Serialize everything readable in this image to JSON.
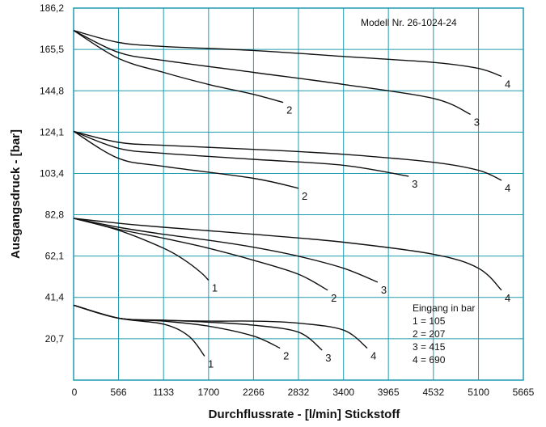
{
  "chart_data": {
    "type": "line",
    "title": "",
    "model_label": "Modell Nr. 26-1024-24",
    "xlabel": "Durchflussrate - [l/min] Stickstoff",
    "ylabel": "Ausgangsdruck - [bar]",
    "xlim": [
      0,
      5665
    ],
    "ylim": [
      0,
      186.2
    ],
    "x_ticks": [
      "0",
      "566",
      "1133",
      "1700",
      "2266",
      "2832",
      "3400",
      "3965",
      "4532",
      "5100",
      "5665"
    ],
    "y_ticks": [
      "186,2",
      "165,5",
      "144,8",
      "124,1",
      "103,4",
      "82,8",
      "62,1",
      "41,4",
      "20,7"
    ],
    "grid": true,
    "grid_color": "#1f9bb0",
    "line_color": "#111111",
    "legend": {
      "title": "Eingang in bar",
      "items": [
        "1 = 105",
        "2 = 207",
        "3 = 415",
        "4 = 690"
      ]
    },
    "series": [
      {
        "name": "4",
        "group": "Gruppe 175",
        "label": "4",
        "x": [
          0,
          566,
          1133,
          2266,
          3400,
          4532,
          5100,
          5390
        ],
        "y": [
          175,
          169,
          167,
          165,
          162,
          159,
          156,
          152
        ]
      },
      {
        "name": "3",
        "group": "Gruppe 175",
        "label": "3",
        "x": [
          0,
          566,
          1133,
          2266,
          3400,
          4532,
          5000
        ],
        "y": [
          175,
          164,
          160,
          154,
          148,
          141,
          133
        ]
      },
      {
        "name": "2",
        "group": "Gruppe 175",
        "label": "2",
        "x": [
          0,
          566,
          1133,
          1700,
          2266,
          2640
        ],
        "y": [
          175,
          161,
          154,
          148,
          143,
          139
        ]
      },
      {
        "name": "4",
        "group": "Gruppe 124",
        "label": "4",
        "x": [
          0,
          566,
          1133,
          2266,
          3400,
          4532,
          5100,
          5390
        ],
        "y": [
          124.5,
          119,
          117.5,
          115.5,
          113,
          109,
          105,
          100
        ]
      },
      {
        "name": "3",
        "group": "Gruppe 124",
        "label": "3",
        "x": [
          0,
          566,
          1133,
          2266,
          3400,
          4220
        ],
        "y": [
          124.5,
          116,
          113.5,
          110.5,
          107.5,
          102
        ]
      },
      {
        "name": "2",
        "group": "Gruppe 124",
        "label": "2",
        "x": [
          0,
          566,
          1133,
          2266,
          2832
        ],
        "y": [
          124.5,
          111,
          107,
          101,
          96
        ]
      },
      {
        "name": "4",
        "group": "Gruppe 81",
        "label": "4",
        "x": [
          0,
          566,
          1133,
          2266,
          3400,
          4532,
          5100,
          5390
        ],
        "y": [
          81,
          78.5,
          76.5,
          73,
          69,
          63,
          56,
          45
        ]
      },
      {
        "name": "3",
        "group": "Gruppe 81",
        "label": "3",
        "x": [
          0,
          566,
          1133,
          1700,
          2266,
          2832,
          3400,
          3830
        ],
        "y": [
          81,
          76.5,
          73,
          70,
          66.5,
          62,
          56,
          49
        ]
      },
      {
        "name": "2",
        "group": "Gruppe 81",
        "label": "2",
        "x": [
          0,
          566,
          1133,
          1700,
          2266,
          2832,
          3200
        ],
        "y": [
          81,
          75.5,
          71,
          66,
          60,
          53,
          45
        ]
      },
      {
        "name": "1",
        "group": "Gruppe 81",
        "label": "1",
        "x": [
          0,
          566,
          1133,
          1400,
          1600,
          1700
        ],
        "y": [
          81,
          75,
          66,
          60,
          54,
          50
        ]
      },
      {
        "name": "4",
        "group": "Gruppe 37",
        "label": "4",
        "x": [
          0,
          566,
          1133,
          1700,
          2266,
          2832,
          3400,
          3700
        ],
        "y": [
          37.5,
          31,
          30,
          29.5,
          29.5,
          28.5,
          25,
          16
        ]
      },
      {
        "name": "3",
        "group": "Gruppe 37",
        "label": "3",
        "x": [
          0,
          566,
          1133,
          1700,
          2266,
          2832,
          3130
        ],
        "y": [
          37.5,
          31,
          30,
          29,
          27.5,
          24,
          15
        ]
      },
      {
        "name": "2",
        "group": "Gruppe 37",
        "label": "2",
        "x": [
          0,
          566,
          1133,
          1700,
          2266,
          2600
        ],
        "y": [
          37.5,
          31,
          29.5,
          27,
          22,
          16
        ]
      },
      {
        "name": "1",
        "group": "Gruppe 37",
        "label": "1",
        "x": [
          0,
          566,
          1133,
          1450,
          1650
        ],
        "y": [
          37.5,
          31,
          28,
          22,
          12
        ]
      }
    ]
  }
}
